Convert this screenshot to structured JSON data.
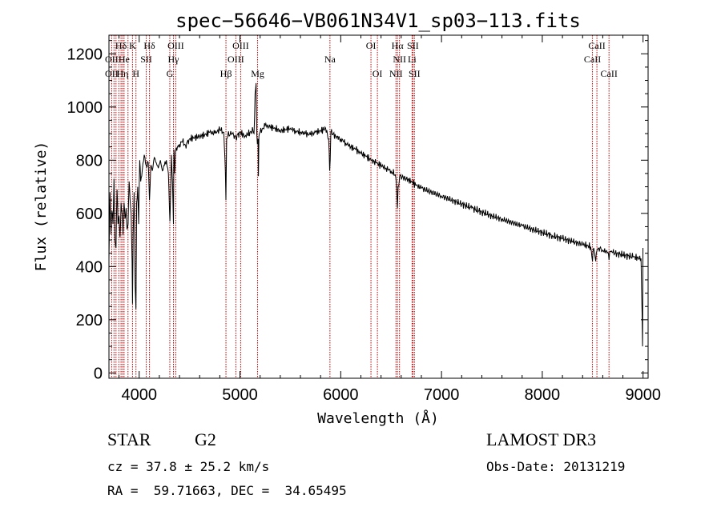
{
  "chart_data": {
    "type": "line",
    "title": "spec−56646−VB061N34V1_sp03−113.fits",
    "xlabel": "Wavelength (Å)",
    "ylabel": "Flux (relative)",
    "xlim": [
      3700,
      9050
    ],
    "ylim": [
      -20,
      1270
    ],
    "xticks": [
      4000,
      5000,
      6000,
      7000,
      8000,
      9000
    ],
    "yticks": [
      0,
      200,
      400,
      600,
      800,
      1000,
      1200
    ],
    "spectrum": {
      "name": "flux",
      "x": [
        3700,
        3710,
        3720,
        3730,
        3740,
        3750,
        3760,
        3770,
        3780,
        3790,
        3800,
        3810,
        3820,
        3830,
        3840,
        3850,
        3860,
        3870,
        3880,
        3890,
        3900,
        3910,
        3920,
        3930,
        3934,
        3940,
        3950,
        3960,
        3968,
        3975,
        3985,
        3995,
        4005,
        4015,
        4030,
        4050,
        4070,
        4090,
        4102,
        4115,
        4130,
        4150,
        4170,
        4190,
        4210,
        4230,
        4250,
        4270,
        4290,
        4305,
        4320,
        4330,
        4340,
        4345,
        4352,
        4360,
        4380,
        4400,
        4430,
        4460,
        4500,
        4550,
        4600,
        4650,
        4700,
        4750,
        4800,
        4840,
        4855,
        4861,
        4868,
        4880,
        4920,
        4960,
        5000,
        5050,
        5100,
        5130,
        5140,
        5150,
        5160,
        5167,
        5173,
        5180,
        5183,
        5188,
        5200,
        5250,
        5300,
        5350,
        5400,
        5450,
        5500,
        5550,
        5600,
        5650,
        5700,
        5750,
        5800,
        5850,
        5880,
        5890,
        5896,
        5902,
        5950,
        6000,
        6050,
        6100,
        6150,
        6200,
        6250,
        6300,
        6350,
        6400,
        6450,
        6500,
        6540,
        6555,
        6563,
        6570,
        6585,
        6650,
        6700,
        6750,
        6800,
        6900,
        7000,
        7100,
        7200,
        7300,
        7400,
        7500,
        7600,
        7700,
        7800,
        7900,
        8000,
        8100,
        8200,
        8300,
        8400,
        8480,
        8498,
        8510,
        8530,
        8542,
        8555,
        8600,
        8650,
        8662,
        8675,
        8700,
        8800,
        8900,
        8980,
        8995,
        8999
      ],
      "y": [
        430,
        680,
        520,
        610,
        560,
        730,
        500,
        470,
        690,
        560,
        590,
        510,
        640,
        600,
        520,
        640,
        580,
        620,
        540,
        560,
        720,
        650,
        600,
        420,
        260,
        520,
        680,
        330,
        240,
        640,
        700,
        560,
        800,
        720,
        760,
        820,
        780,
        790,
        650,
        780,
        760,
        810,
        790,
        770,
        800,
        760,
        780,
        800,
        750,
        570,
        820,
        720,
        560,
        840,
        750,
        830,
        850,
        860,
        870,
        855,
        880,
        885,
        890,
        895,
        905,
        900,
        915,
        905,
        760,
        650,
        880,
        895,
        900,
        885,
        905,
        890,
        905,
        910,
        900,
        1050,
        1090,
        900,
        860,
        880,
        740,
        890,
        905,
        930,
        925,
        920,
        910,
        915,
        920,
        910,
        905,
        900,
        895,
        905,
        910,
        920,
        880,
        760,
        800,
        905,
        890,
        880,
        865,
        850,
        840,
        825,
        815,
        800,
        790,
        780,
        770,
        760,
        745,
        700,
        620,
        700,
        740,
        730,
        720,
        705,
        695,
        680,
        665,
        650,
        635,
        620,
        605,
        590,
        578,
        565,
        553,
        540,
        528,
        516,
        505,
        494,
        483,
        475,
        420,
        470,
        420,
        460,
        470,
        462,
        454,
        425,
        458,
        452,
        444,
        436,
        430,
        100,
        470
      ]
    },
    "lines_top": [
      {
        "label": "Hδ",
        "x": 3820
      },
      {
        "label": "K",
        "x": 3934
      },
      {
        "label": "Hδ",
        "x": 4102
      },
      {
        "label": "OIII",
        "x": 4363
      },
      {
        "label": "OIII",
        "x": 5007
      },
      {
        "label": "OI",
        "x": 6300
      },
      {
        "label": "Hα",
        "x": 6563
      },
      {
        "label": "SII",
        "x": 6716
      },
      {
        "label": "CaII",
        "x": 8542
      }
    ],
    "lines_mid": [
      {
        "label": "OII",
        "x": 3727
      },
      {
        "label": "He",
        "x": 3850
      },
      {
        "label": "SII",
        "x": 4070
      },
      {
        "label": "Hγ",
        "x": 4340
      },
      {
        "label": "OIII",
        "x": 4959
      },
      {
        "label": "Na",
        "x": 5893
      },
      {
        "label": "NII",
        "x": 6583
      },
      {
        "label": "Li",
        "x": 6708
      },
      {
        "label": "CaII",
        "x": 8498
      }
    ],
    "lines_low": [
      {
        "label": "OII",
        "x": 3727
      },
      {
        "label": "Hη",
        "x": 3835
      },
      {
        "label": "H",
        "x": 3968
      },
      {
        "label": "G",
        "x": 4304
      },
      {
        "label": "Hβ",
        "x": 4861
      },
      {
        "label": "Mg",
        "x": 5175
      },
      {
        "label": "OI",
        "x": 6364
      },
      {
        "label": "NII",
        "x": 6548
      },
      {
        "label": "SII",
        "x": 6731
      },
      {
        "label": "CaII",
        "x": 8662
      }
    ],
    "marker_lines_x": [
      3727,
      3750,
      3770,
      3798,
      3820,
      3835,
      3850,
      3889,
      3934,
      3968,
      4070,
      4102,
      4304,
      4340,
      4363,
      4861,
      4959,
      5007,
      5175,
      5893,
      6300,
      6364,
      6548,
      6563,
      6583,
      6708,
      6716,
      6731,
      8498,
      8542,
      8662
    ]
  },
  "info": {
    "object_class": "STAR",
    "subclass": "G2",
    "survey": "LAMOST DR3",
    "redshift": "cz = 37.8 ± 25.2 km/s",
    "obs_date": "Obs-Date: 20131219",
    "coords": "RA =  59.71663, DEC =  34.65495"
  },
  "colors": {
    "marker_line": "#c00000",
    "spectrum": "#000000",
    "axis": "#000000"
  }
}
